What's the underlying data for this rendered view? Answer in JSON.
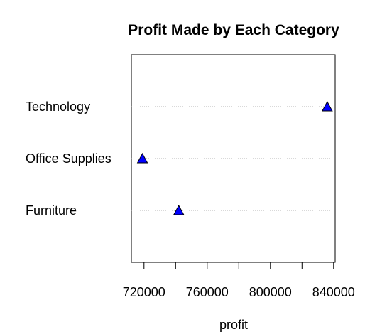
{
  "chart_data": {
    "type": "scatter",
    "title": "Profit Made by Each Category",
    "xlabel": "profit",
    "ylabel": "",
    "categories": [
      "Furniture",
      "Office Supplies",
      "Technology"
    ],
    "series": [
      {
        "values": [
          742000,
          719000,
          836000
        ]
      }
    ],
    "xlim": [
      712000,
      841000
    ],
    "xticks": [
      720000,
      760000,
      800000,
      840000
    ],
    "xtick_labels": [
      "720000",
      "760000",
      "800000",
      "840000"
    ],
    "grid": "dotted horizontal guide lines per category",
    "marker": "filled-triangle",
    "marker_color": "#0000ff",
    "marker_edge_color": "#000000"
  }
}
